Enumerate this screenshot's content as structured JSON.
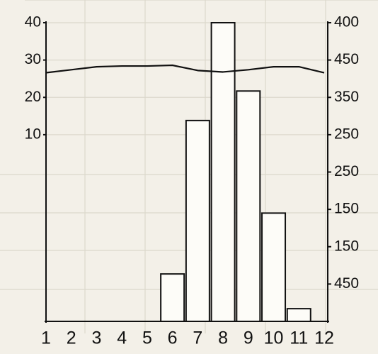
{
  "chart_data": {
    "type": "bar",
    "categories": [
      "1",
      "2",
      "3",
      "4",
      "5",
      "6",
      "7",
      "8",
      "9",
      "10",
      "11",
      "12"
    ],
    "values": [
      null,
      null,
      null,
      null,
      null,
      -27.3,
      13.8,
      40,
      21.7,
      -11,
      -36.6,
      null
    ],
    "line_values": [
      26.6,
      27.4,
      28.2,
      28.4,
      28.4,
      28.6,
      27.2,
      26.8,
      27.4,
      28.2,
      28.2,
      26.6
    ],
    "ylim": [
      -40,
      40
    ],
    "yticks": [
      10,
      20,
      30,
      40
    ],
    "y2_labels": [
      "400",
      "450",
      "350",
      "250",
      "250",
      "150",
      "150",
      "450"
    ],
    "grid": true,
    "color": "#fdfcf8",
    "line_color": "#111"
  }
}
